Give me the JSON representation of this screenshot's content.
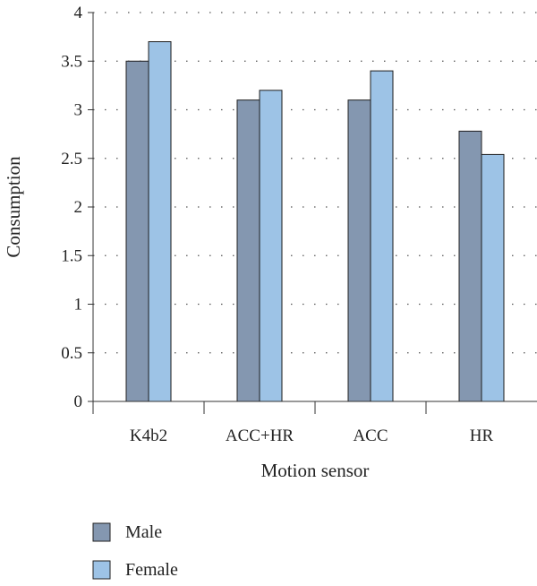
{
  "chart_data": {
    "type": "bar",
    "categories": [
      "K4b2",
      "ACC+HR",
      "ACC",
      "HR"
    ],
    "series": [
      {
        "name": "Male",
        "values": [
          3.5,
          3.1,
          3.1,
          2.78
        ],
        "color": "#8497b0"
      },
      {
        "name": "Female",
        "values": [
          3.7,
          3.2,
          3.4,
          2.54
        ],
        "color": "#9dc3e6"
      }
    ],
    "title": "",
    "xlabel": "Motion sensor",
    "ylabel": "Consumption",
    "ylim": [
      0,
      4
    ],
    "yticks": [
      0,
      0.5,
      1,
      1.5,
      2,
      2.5,
      3,
      3.5,
      4
    ],
    "ytick_labels": [
      "0",
      "0.5",
      "1",
      "1.5",
      "2",
      "2.5",
      "3",
      "3.5",
      "4"
    ],
    "grid": true,
    "legend_position": "bottom-left"
  }
}
